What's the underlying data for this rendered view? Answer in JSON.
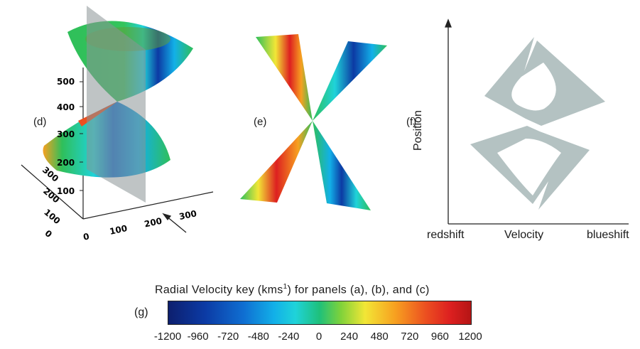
{
  "panel_d": {
    "label": "(d)",
    "z_ticks": [
      "500",
      "400",
      "300",
      "200",
      "100"
    ],
    "x_ticks": [
      "0",
      "100",
      "200",
      "300"
    ],
    "y_ticks": [
      "300",
      "200",
      "100",
      "0"
    ]
  },
  "panel_e": {
    "label": "(e)"
  },
  "panel_f": {
    "label": "(f)",
    "y_axis_label": "Position",
    "x_axis_label": "Velocity",
    "x_left_label": "redshift",
    "x_right_label": "blueshift"
  },
  "panel_g": {
    "label": "(g)",
    "key_title_a": "Radial  Velocity  key  (kms",
    "key_title_sup": "1",
    "key_title_b": ")  for panels (a),  (b),  and  (c)",
    "ticks": [
      "-1200",
      "-960",
      "-720",
      "-480",
      "-240",
      "0",
      "240",
      "480",
      "720",
      "960",
      "1200"
    ]
  },
  "colors": {
    "cone_green": "#2fbf5a",
    "deep_blue": "#0c3aa4",
    "cyan": "#1fd3d9",
    "red": "#dd2020",
    "yellow": "#f2e636",
    "plane_gray": "#8a9496",
    "pv_fill": "#b4c2c2"
  }
}
